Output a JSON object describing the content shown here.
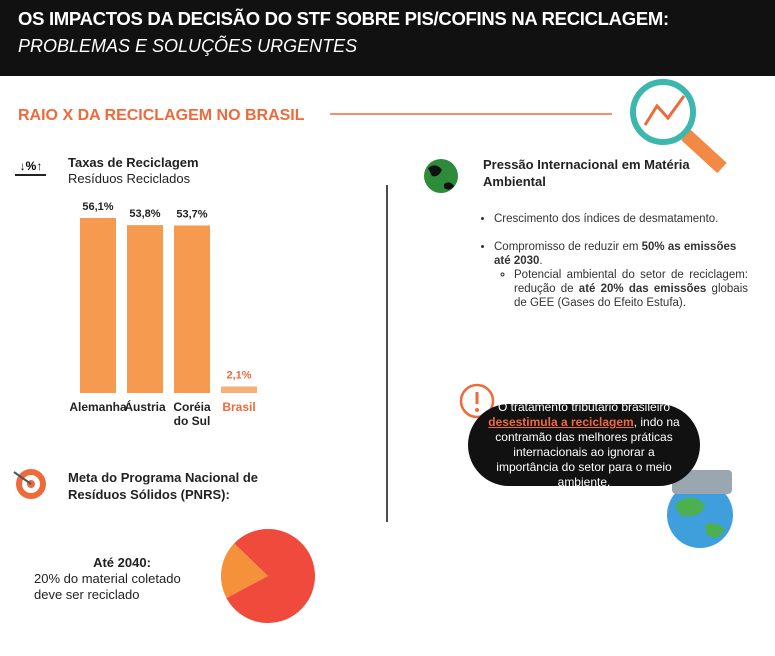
{
  "header": {
    "title": "OS IMPACTOS DA DECISÃO DO STF SOBRE PIS/COFINS NA RECICLAGEM:",
    "subtitle": "PROBLEMAS E SOLUÇÕES URGENTES"
  },
  "section_title": "RAIO X DA RECICLAGEM NO BRASIL",
  "chart_data": [
    {
      "type": "bar",
      "title": "Taxas de Reciclagem",
      "subtitle": "Resíduos Reciclados",
      "categories": [
        "Alemanha",
        "Áustria",
        "Coréia do Sul",
        "Brasil"
      ],
      "values": [
        56.1,
        53.8,
        53.7,
        2.1
      ],
      "value_labels": [
        "56,1%",
        "53,8%",
        "53,7%",
        "2,1%"
      ],
      "colors": [
        "#f59a4f",
        "#f59a4f",
        "#f59a4f",
        "#f7b07a"
      ],
      "label_colors": [
        "#222222",
        "#222222",
        "#222222",
        "#ef6a3a"
      ]
    },
    {
      "type": "pie",
      "values": [
        20,
        80
      ],
      "colors": [
        "#f4913a",
        "#ef4a3c"
      ]
    }
  ],
  "goal": {
    "title": "Meta do Programa Nacional de Resíduos Sólidos (PNRS):",
    "label": "Até 2040:",
    "text": "20% do material coletado deve ser reciclado"
  },
  "international": {
    "title": "Pressão Internacional em Matéria Ambiental",
    "bullets": [
      {
        "parts": [
          "Crescimento dos índices de desmatamento."
        ]
      },
      {
        "parts": [
          "Compromisso de reduzir em ",
          "50% as emissões até 2030",
          "."
        ]
      }
    ],
    "sub_bullet": {
      "parts": [
        "Potencial ambiental do setor de reciclagem: redução de ",
        "até 20% das emissões",
        " globais de GEE (Gases do Efeito Estufa)."
      ]
    }
  },
  "callout": {
    "parts": [
      "O tratamento tributário brasileiro ",
      "desestimula a reciclagem",
      ", indo na contramão das melhores práticas internacionais ao ignorar a importância do setor para o meio ambiente."
    ]
  }
}
